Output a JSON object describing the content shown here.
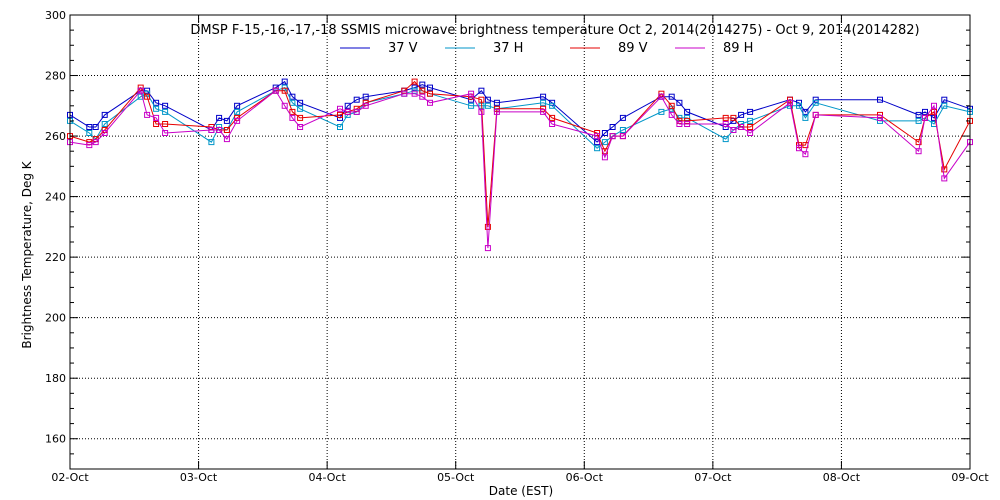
{
  "chart_data": {
    "type": "line",
    "title": "DMSP F-15,-16,-17,-18 SSMIS microwave brightness temperature Oct  2, 2014(2014275) - Oct  9, 2014(2014282)",
    "xlabel": "Date (EST)",
    "ylabel": "Brightness Temperature, Deg K",
    "xlim": [
      0,
      7
    ],
    "ylim": [
      150,
      300
    ],
    "x_ticks": [
      {
        "value": 0,
        "label": "02-Oct"
      },
      {
        "value": 1,
        "label": "03-Oct"
      },
      {
        "value": 2,
        "label": "04-Oct"
      },
      {
        "value": 3,
        "label": "05-Oct"
      },
      {
        "value": 4,
        "label": "06-Oct"
      },
      {
        "value": 5,
        "label": "07-Oct"
      },
      {
        "value": 6,
        "label": "08-Oct"
      },
      {
        "value": 7,
        "label": "09-Oct"
      }
    ],
    "y_ticks": [
      {
        "value": 160,
        "label": "160"
      },
      {
        "value": 180,
        "label": "180"
      },
      {
        "value": 200,
        "label": "200"
      },
      {
        "value": 220,
        "label": "220"
      },
      {
        "value": 240,
        "label": "240"
      },
      {
        "value": 260,
        "label": "260"
      },
      {
        "value": 280,
        "label": "280"
      },
      {
        "value": 300,
        "label": "300"
      }
    ],
    "grid": true,
    "legend_position": "top-center",
    "x": [
      0.0,
      0.15,
      0.2,
      0.27,
      0.55,
      0.6,
      0.67,
      0.74,
      1.1,
      1.16,
      1.22,
      1.3,
      1.6,
      1.67,
      1.73,
      1.79,
      2.1,
      2.16,
      2.23,
      2.3,
      2.6,
      2.68,
      2.74,
      2.8,
      3.12,
      3.2,
      3.25,
      3.32,
      3.68,
      3.75,
      4.1,
      4.16,
      4.22,
      4.3,
      4.6,
      4.68,
      4.74,
      4.8,
      5.1,
      5.16,
      5.22,
      5.29,
      5.6,
      5.67,
      5.72,
      5.8,
      6.3,
      6.6,
      6.65,
      6.72,
      6.8,
      7.0
    ],
    "series": [
      {
        "name": "37 V",
        "color": "#0000c8",
        "values": [
          267,
          263,
          263,
          267,
          275,
          275,
          271,
          270,
          262,
          266,
          265,
          270,
          276,
          278,
          273,
          271,
          266,
          270,
          272,
          273,
          275,
          276,
          277,
          276,
          272,
          275,
          272,
          271,
          273,
          271,
          258,
          261,
          263,
          266,
          273,
          273,
          271,
          268,
          263,
          265,
          267,
          268,
          272,
          271,
          268,
          272,
          272,
          267,
          268,
          266,
          272,
          269
        ]
      },
      {
        "name": "37 H",
        "color": "#0096c8",
        "values": [
          265,
          261,
          259,
          264,
          273,
          274,
          269,
          268,
          258,
          263,
          262,
          268,
          275,
          276,
          271,
          269,
          263,
          267,
          268,
          271,
          274,
          275,
          275,
          274,
          270,
          270,
          270,
          269,
          271,
          270,
          256,
          258,
          260,
          262,
          268,
          269,
          266,
          266,
          259,
          262,
          264,
          265,
          270,
          270,
          266,
          271,
          265,
          265,
          266,
          264,
          270,
          268
        ]
      },
      {
        "name": "89 V",
        "color": "#e60000",
        "values": [
          260,
          258,
          259,
          262,
          276,
          273,
          264,
          264,
          263,
          262,
          262,
          266,
          275,
          275,
          268,
          266,
          267,
          268,
          269,
          271,
          275,
          278,
          275,
          274,
          273,
          272,
          230,
          269,
          269,
          266,
          261,
          255,
          260,
          260,
          274,
          270,
          265,
          265,
          266,
          266,
          263,
          263,
          272,
          257,
          257,
          267,
          267,
          258,
          266,
          268,
          249,
          265
        ]
      },
      {
        "name": "89 H",
        "color": "#c800c8",
        "values": [
          258,
          257,
          258,
          261,
          275,
          267,
          266,
          261,
          262,
          262,
          259,
          265,
          275,
          270,
          266,
          263,
          269,
          268,
          268,
          270,
          274,
          274,
          273,
          271,
          274,
          268,
          223,
          268,
          268,
          264,
          260,
          253,
          260,
          260,
          273,
          267,
          264,
          264,
          264,
          262,
          263,
          261,
          271,
          256,
          254,
          267,
          266,
          255,
          266,
          270,
          246,
          258
        ]
      }
    ]
  }
}
